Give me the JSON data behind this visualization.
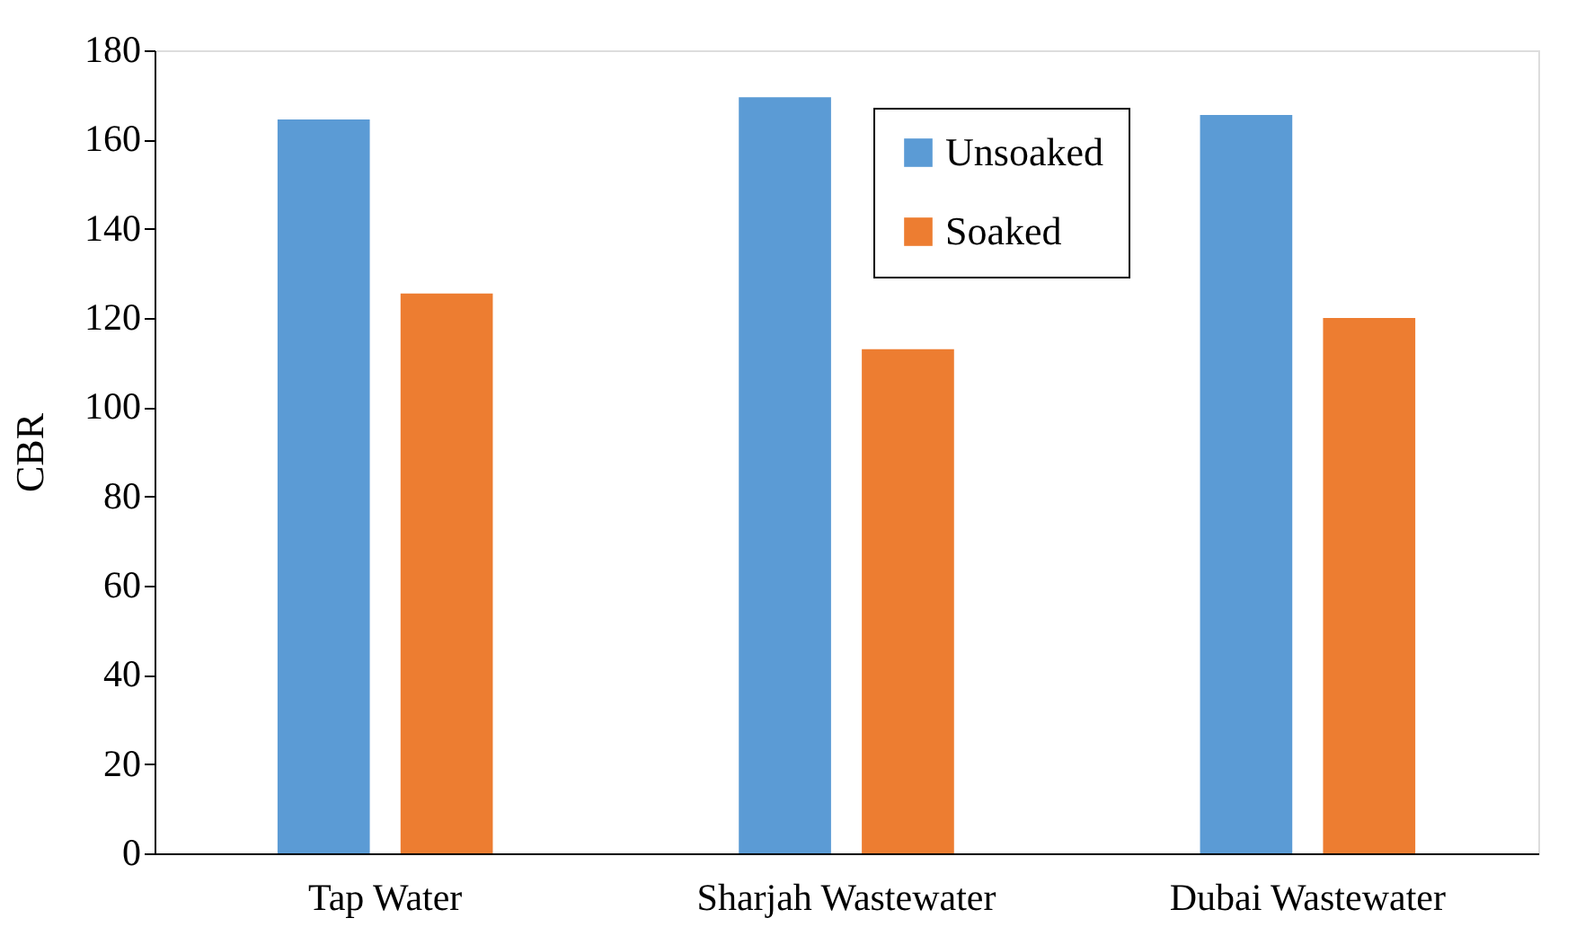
{
  "chart_data": {
    "type": "bar",
    "ylabel": "CBR",
    "categories": [
      "Tap Water",
      "Sharjah Wastewater",
      "Dubai Wastewater"
    ],
    "series": [
      {
        "name": "Unsoaked",
        "color": "#5b9bd5",
        "values": [
          164.5,
          169.5,
          165.5
        ]
      },
      {
        "name": "Soaked",
        "color": "#ed7d31",
        "values": [
          125.5,
          113,
          120
        ]
      }
    ],
    "ylim": [
      0,
      180
    ],
    "yticks": [
      0,
      20,
      40,
      60,
      80,
      100,
      120,
      140,
      160,
      180
    ],
    "grid": false,
    "legend": "top right"
  }
}
